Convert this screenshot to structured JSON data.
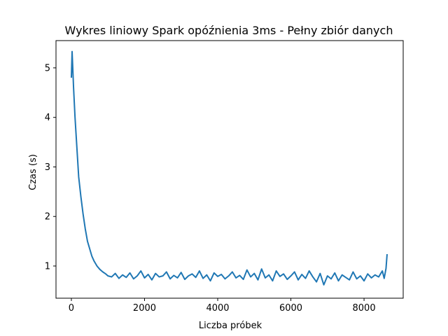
{
  "chart_data": {
    "type": "line",
    "title": "Wykres liniowy Spark opóźnienia 3ms - Pełny zbiór danych",
    "xlabel": "Liczba próbek",
    "ylabel": "Czas (s)",
    "xlim": [
      -420,
      9070
    ],
    "ylim": [
      0.35,
      5.55
    ],
    "xticks": [
      0,
      2000,
      4000,
      6000,
      8000
    ],
    "xtick_labels": [
      "0",
      "2000",
      "4000",
      "6000",
      "8000"
    ],
    "yticks": [
      1,
      2,
      3,
      4,
      5
    ],
    "ytick_labels": [
      "1",
      "2",
      "3",
      "4",
      "5"
    ],
    "grid": false,
    "legend": "none",
    "series": [
      {
        "color": "#1f77b4",
        "x": [
          0,
          20,
          60,
          100,
          150,
          200,
          260,
          320,
          380,
          440,
          500,
          560,
          620,
          700,
          780,
          860,
          940,
          1000,
          1100,
          1200,
          1300,
          1400,
          1500,
          1600,
          1700,
          1800,
          1900,
          2000,
          2100,
          2200,
          2300,
          2400,
          2500,
          2600,
          2700,
          2800,
          2900,
          3000,
          3100,
          3200,
          3300,
          3400,
          3500,
          3600,
          3700,
          3800,
          3900,
          4000,
          4100,
          4200,
          4300,
          4400,
          4500,
          4600,
          4700,
          4800,
          4900,
          5000,
          5100,
          5200,
          5300,
          5400,
          5500,
          5600,
          5700,
          5800,
          5900,
          6000,
          6100,
          6200,
          6300,
          6400,
          6500,
          6600,
          6700,
          6800,
          6900,
          7000,
          7100,
          7200,
          7300,
          7400,
          7500,
          7600,
          7700,
          7800,
          7900,
          8000,
          8100,
          8200,
          8300,
          8400,
          8500,
          8550,
          8600,
          8630
        ],
        "y": [
          4.8,
          5.33,
          4.6,
          4.0,
          3.4,
          2.8,
          2.4,
          2.05,
          1.75,
          1.5,
          1.35,
          1.2,
          1.1,
          1.0,
          0.93,
          0.88,
          0.84,
          0.8,
          0.78,
          0.85,
          0.75,
          0.82,
          0.77,
          0.86,
          0.74,
          0.8,
          0.9,
          0.76,
          0.83,
          0.72,
          0.85,
          0.78,
          0.8,
          0.88,
          0.74,
          0.81,
          0.76,
          0.87,
          0.73,
          0.8,
          0.84,
          0.77,
          0.9,
          0.75,
          0.82,
          0.7,
          0.86,
          0.79,
          0.83,
          0.74,
          0.8,
          0.88,
          0.76,
          0.81,
          0.73,
          0.92,
          0.78,
          0.85,
          0.72,
          0.94,
          0.76,
          0.82,
          0.7,
          0.9,
          0.79,
          0.84,
          0.73,
          0.8,
          0.88,
          0.72,
          0.83,
          0.75,
          0.9,
          0.78,
          0.68,
          0.85,
          0.62,
          0.8,
          0.74,
          0.86,
          0.7,
          0.82,
          0.77,
          0.72,
          0.88,
          0.74,
          0.8,
          0.7,
          0.84,
          0.76,
          0.82,
          0.78,
          0.9,
          0.75,
          0.95,
          1.24
        ]
      }
    ]
  }
}
